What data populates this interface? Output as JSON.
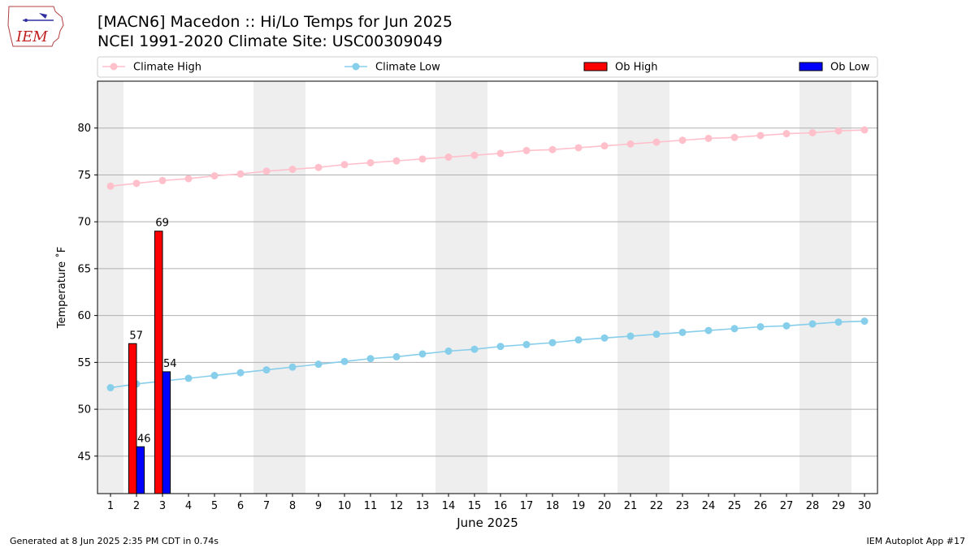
{
  "header": {
    "title": "[MACN6] Macedon :: Hi/Lo Temps for Jun 2025",
    "subtitle": "NCEI 1991-2020 Climate Site: USC00309049",
    "logo_text": "IEM"
  },
  "footer": {
    "left": "Generated at 8 Jun 2025 2:35 PM CDT in 0.74s",
    "right": "IEM Autoplot App #17"
  },
  "chart_data": {
    "type": "bar",
    "xlabel": "June 2025",
    "ylabel": "Temperature ˚F",
    "xlim": [
      0.5,
      30.5
    ],
    "ylim": [
      41,
      85
    ],
    "yticks": [
      45,
      50,
      55,
      60,
      65,
      70,
      75,
      80
    ],
    "x": [
      1,
      2,
      3,
      4,
      5,
      6,
      7,
      8,
      9,
      10,
      11,
      12,
      13,
      14,
      15,
      16,
      17,
      18,
      19,
      20,
      21,
      22,
      23,
      24,
      25,
      26,
      27,
      28,
      29,
      30
    ],
    "weekend_bands": [
      [
        1,
        1
      ],
      [
        7,
        8
      ],
      [
        14,
        15
      ],
      [
        21,
        22
      ],
      [
        28,
        29
      ]
    ],
    "grid": "horizontal",
    "legend_position": "top",
    "colors": {
      "climate_high": "#ffc0cb",
      "climate_low": "#87ceeb",
      "ob_high": "#ff0000",
      "ob_low": "#0000ff",
      "band": "#eeeeee",
      "grid": "#b0b0b0"
    },
    "series": [
      {
        "name": "Climate High",
        "kind": "line",
        "values": [
          73.8,
          74.1,
          74.4,
          74.6,
          74.9,
          75.1,
          75.4,
          75.6,
          75.8,
          76.1,
          76.3,
          76.5,
          76.7,
          76.9,
          77.1,
          77.3,
          77.6,
          77.7,
          77.9,
          78.1,
          78.3,
          78.5,
          78.7,
          78.9,
          79.0,
          79.2,
          79.4,
          79.5,
          79.7,
          79.8
        ]
      },
      {
        "name": "Climate Low",
        "kind": "line",
        "values": [
          52.3,
          52.7,
          53.0,
          53.3,
          53.6,
          53.9,
          54.2,
          54.5,
          54.8,
          55.1,
          55.4,
          55.6,
          55.9,
          56.2,
          56.4,
          56.7,
          56.9,
          57.1,
          57.4,
          57.6,
          57.8,
          58.0,
          58.2,
          58.4,
          58.6,
          58.8,
          58.9,
          59.1,
          59.3,
          59.4
        ]
      },
      {
        "name": "Ob High",
        "kind": "bar",
        "x": [
          2,
          3
        ],
        "values": [
          57,
          69
        ],
        "labels": [
          "57",
          "69"
        ]
      },
      {
        "name": "Ob Low",
        "kind": "bar",
        "x": [
          2,
          3
        ],
        "values": [
          46,
          54
        ],
        "labels": [
          "46",
          "54"
        ]
      }
    ]
  }
}
